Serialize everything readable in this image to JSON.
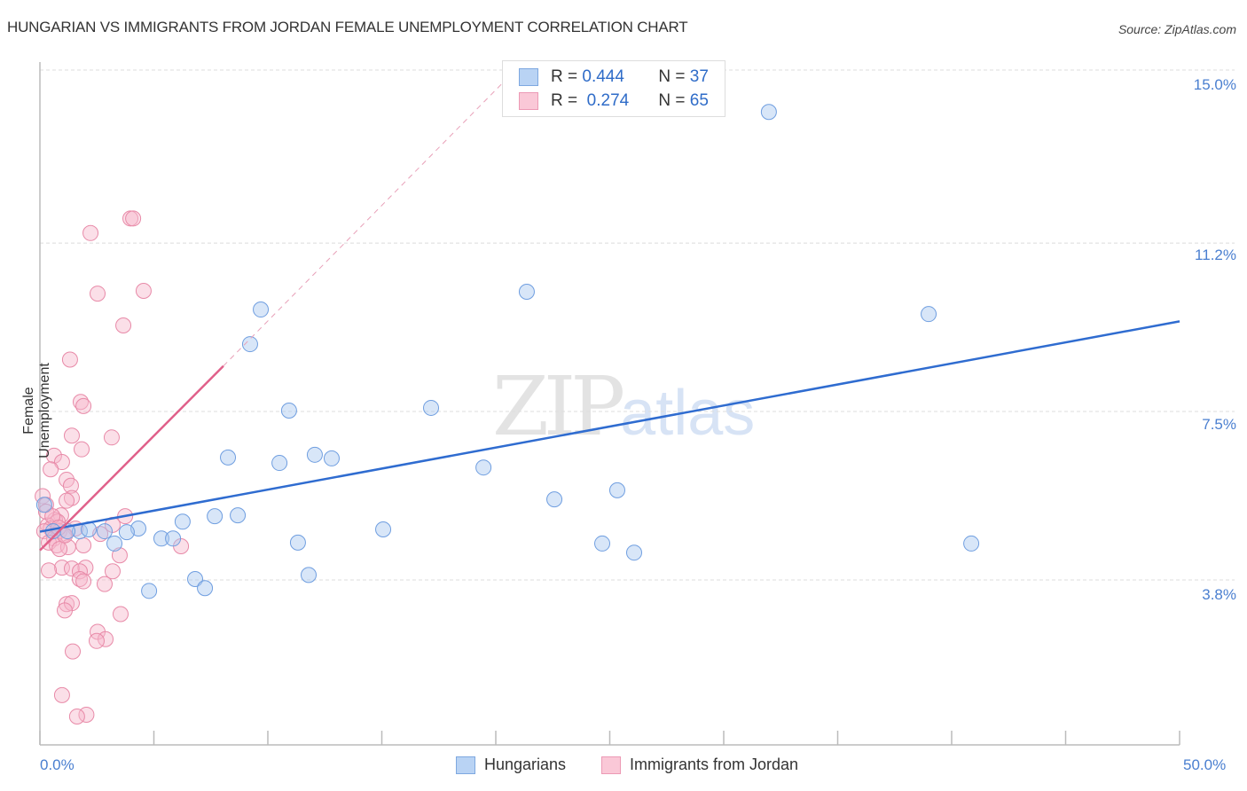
{
  "header": {
    "title": "HUNGARIAN VS IMMIGRANTS FROM JORDAN FEMALE UNEMPLOYMENT CORRELATION CHART",
    "source": "Source: ZipAtlas.com"
  },
  "axes": {
    "ylabel": "Female Unemployment",
    "yticks": [
      "15.0%",
      "11.2%",
      "7.5%",
      "3.8%"
    ],
    "xticks": [
      "0.0%",
      "50.0%"
    ]
  },
  "legend": {
    "rows": [
      {
        "r_label": "R = ",
        "r_value": "0.444",
        "n_label": "N = ",
        "n_value": "37",
        "color": "#a9c8f0"
      },
      {
        "r_label": "R = ",
        "r_value": " 0.274",
        "n_label": "N = ",
        "n_value": "65",
        "color": "#f6b8cb"
      }
    ],
    "series": [
      {
        "name": "Hungarians",
        "color": "#a9c8f0"
      },
      {
        "name": "Immigrants from Jordan",
        "color": "#f6b8cb"
      }
    ]
  },
  "watermark": {
    "zip": "ZIP",
    "atlas": "atlas"
  },
  "colors": {
    "blue_line": "#2f6cd0",
    "pink_line": "#e0608a",
    "blue_fill": "rgba(169,200,240,0.45)",
    "blue_stroke": "#6f9ee0",
    "pink_fill": "rgba(246,184,203,0.45)",
    "pink_stroke": "#e88aa8",
    "tick_text": "#4a7fd0"
  },
  "chart_data": {
    "type": "scatter",
    "title": "HUNGARIAN VS IMMIGRANTS FROM JORDAN FEMALE UNEMPLOYMENT CORRELATION CHART",
    "xlabel": "",
    "ylabel": "Female Unemployment",
    "xlim": [
      0,
      50
    ],
    "ylim": [
      0.7,
      15.6
    ],
    "y_gridlines": [
      3.8,
      7.5,
      11.2,
      15.0
    ],
    "grid": true,
    "legend_position": "top-center / bottom",
    "series": [
      {
        "name": "Hungarians",
        "R": 0.444,
        "N": 37,
        "trend": {
          "x0": 0,
          "y0": 4.86,
          "x1": 50,
          "y1": 9.48
        },
        "points": [
          [
            31.98,
            14.08
          ],
          [
            21.36,
            10.13
          ],
          [
            9.69,
            9.74
          ],
          [
            38.99,
            9.64
          ],
          [
            9.22,
            8.98
          ],
          [
            10.93,
            7.52
          ],
          [
            17.16,
            7.58
          ],
          [
            8.25,
            6.49
          ],
          [
            12.06,
            6.55
          ],
          [
            12.8,
            6.47
          ],
          [
            10.51,
            6.37
          ],
          [
            19.46,
            6.27
          ],
          [
            25.33,
            5.77
          ],
          [
            22.57,
            5.57
          ],
          [
            7.67,
            5.2
          ],
          [
            8.68,
            5.22
          ],
          [
            6.26,
            5.08
          ],
          [
            4.32,
            4.93
          ],
          [
            15.06,
            4.91
          ],
          [
            2.84,
            4.87
          ],
          [
            1.75,
            4.87
          ],
          [
            3.81,
            4.85
          ],
          [
            1.21,
            4.87
          ],
          [
            11.32,
            4.62
          ],
          [
            5.33,
            4.71
          ],
          [
            5.84,
            4.71
          ],
          [
            3.27,
            4.6
          ],
          [
            24.67,
            4.6
          ],
          [
            40.86,
            4.6
          ],
          [
            26.07,
            4.4
          ],
          [
            6.81,
            3.82
          ],
          [
            11.79,
            3.91
          ],
          [
            4.79,
            3.56
          ],
          [
            7.24,
            3.62
          ],
          [
            0.19,
            5.45
          ],
          [
            0.58,
            4.87
          ],
          [
            2.14,
            4.91
          ]
        ]
      },
      {
        "name": "Immigrants from Jordan",
        "R": 0.274,
        "N": 65,
        "trend": {
          "x0": 0,
          "y0": 4.45,
          "x1": 8.05,
          "y1": 8.5,
          "dashed_to": {
            "x": 20.8,
            "y": 14.97
          }
        },
        "points": [
          [
            3.97,
            11.74
          ],
          [
            4.09,
            11.74
          ],
          [
            2.22,
            11.42
          ],
          [
            4.55,
            10.15
          ],
          [
            2.53,
            10.09
          ],
          [
            3.66,
            9.39
          ],
          [
            1.32,
            8.64
          ],
          [
            1.79,
            7.71
          ],
          [
            1.91,
            7.62
          ],
          [
            1.4,
            6.97
          ],
          [
            3.15,
            6.93
          ],
          [
            1.83,
            6.67
          ],
          [
            0.62,
            6.53
          ],
          [
            0.97,
            6.39
          ],
          [
            0.47,
            6.23
          ],
          [
            1.17,
            6.0
          ],
          [
            1.36,
            5.87
          ],
          [
            0.12,
            5.64
          ],
          [
            1.4,
            5.6
          ],
          [
            1.17,
            5.54
          ],
          [
            0.27,
            5.45
          ],
          [
            0.93,
            5.22
          ],
          [
            3.74,
            5.2
          ],
          [
            0.66,
            5.12
          ],
          [
            0.78,
            5.08
          ],
          [
            0.35,
            5.0
          ],
          [
            1.56,
            4.93
          ],
          [
            3.19,
            5.01
          ],
          [
            0.47,
            4.93
          ],
          [
            0.86,
            4.87
          ],
          [
            0.19,
            4.87
          ],
          [
            1.05,
            4.79
          ],
          [
            2.65,
            4.81
          ],
          [
            0.62,
            4.71
          ],
          [
            0.39,
            4.62
          ],
          [
            0.74,
            4.56
          ],
          [
            1.91,
            4.56
          ],
          [
            1.24,
            4.52
          ],
          [
            0.86,
            4.48
          ],
          [
            6.19,
            4.54
          ],
          [
            3.5,
            4.34
          ],
          [
            0.97,
            4.07
          ],
          [
            1.4,
            4.05
          ],
          [
            2.0,
            4.07
          ],
          [
            0.39,
            4.01
          ],
          [
            1.75,
            3.99
          ],
          [
            3.19,
            3.99
          ],
          [
            1.75,
            3.82
          ],
          [
            1.91,
            3.77
          ],
          [
            2.84,
            3.71
          ],
          [
            1.17,
            3.27
          ],
          [
            1.4,
            3.29
          ],
          [
            1.09,
            3.13
          ],
          [
            3.54,
            3.05
          ],
          [
            2.53,
            2.66
          ],
          [
            2.88,
            2.5
          ],
          [
            2.49,
            2.46
          ],
          [
            1.44,
            2.23
          ],
          [
            0.97,
            1.27
          ],
          [
            2.04,
            0.84
          ],
          [
            1.63,
            0.8
          ],
          [
            0.27,
            5.3
          ],
          [
            0.55,
            5.2
          ],
          [
            0.82,
            4.95
          ],
          [
            1.1,
            4.78
          ]
        ]
      }
    ]
  }
}
